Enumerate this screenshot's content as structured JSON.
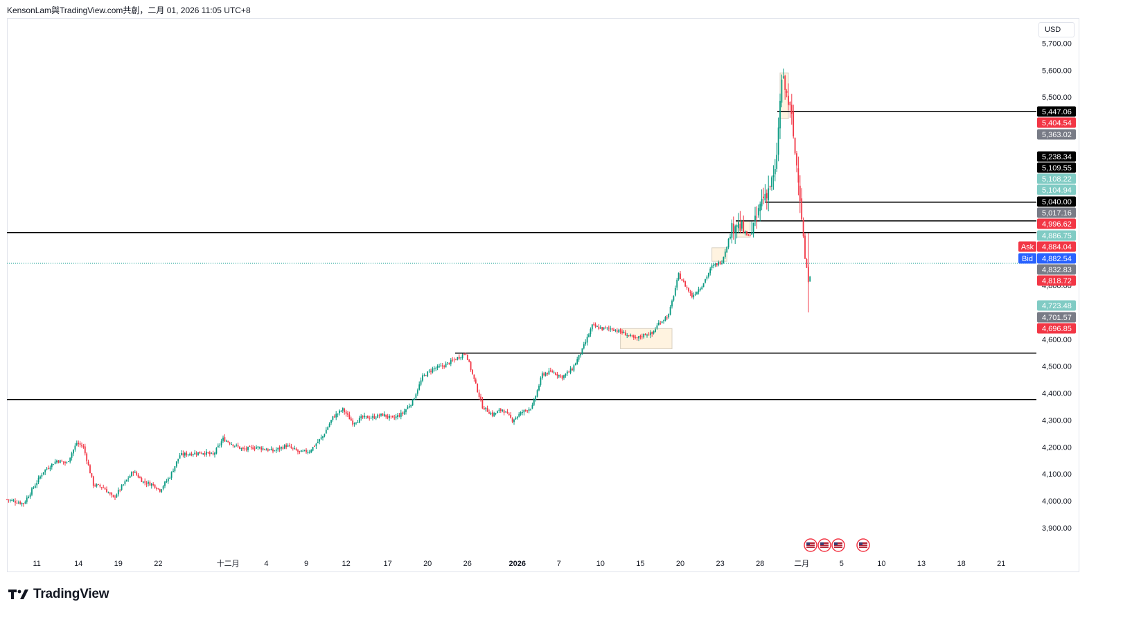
{
  "caption": "KensonLam與TradingView.com共創，二月 01, 2026 11:05 UTC+8",
  "currency": "USD",
  "brand": "TradingView",
  "chart_data": {
    "type": "candlestick",
    "title": "",
    "xlabel": "",
    "ylabel": "",
    "ylim": [
      3850,
      5770
    ],
    "y_ticks": [
      "5,700.00",
      "5,600.00",
      "5,500.00",
      "5,200.00",
      "4,800.00",
      "4,600.00",
      "4,500.00",
      "4,400.00",
      "4,300.00",
      "4,200.00",
      "4,100.00",
      "4,000.00",
      "3,900.00"
    ],
    "x_ticks": [
      "11",
      "14",
      "19",
      "22",
      "十二月",
      "4",
      "9",
      "12",
      "17",
      "20",
      "26",
      "2026",
      "7",
      "10",
      "15",
      "20",
      "23",
      "28",
      "二月",
      "5",
      "10",
      "13",
      "18",
      "21"
    ],
    "key_levels": [
      {
        "value": 5447.06,
        "label": "5,447.06"
      },
      {
        "value": 5109.55,
        "label": "5,109.55"
      },
      {
        "value": 5040.0,
        "label": "5,040.00"
      },
      {
        "value": 4996.62,
        "label": ""
      },
      {
        "value": 4548.74,
        "label": "4,548.74"
      },
      {
        "value": 4376.28,
        "label": "4,376.28"
      }
    ],
    "price_labels": [
      {
        "label": "5,447.06",
        "color": "#000000"
      },
      {
        "label": "5,404.54",
        "color": "#f23645"
      },
      {
        "label": "5,363.02",
        "color": "#787b86"
      },
      {
        "label": "5,238.34",
        "color": "#000000"
      },
      {
        "label": "5,109.55",
        "color": "#000000"
      },
      {
        "label": "5,108.22",
        "color": "#80cbc4"
      },
      {
        "label": "5,104.94",
        "color": "#80cbc4"
      },
      {
        "label": "5,040.00",
        "color": "#000000"
      },
      {
        "label": "5,017.16",
        "color": "#787b86"
      },
      {
        "label": "4,996.62",
        "color": "#f23645"
      },
      {
        "label": "4,886.75",
        "color": "#80cbc4"
      },
      {
        "label": "4,884.04",
        "color": "#f23645",
        "tag": "Ask"
      },
      {
        "label": "4,882.54",
        "color": "#2962ff",
        "tag": "Bid"
      },
      {
        "label": "4,832.83",
        "color": "#787b86"
      },
      {
        "label": "4,818.72",
        "color": "#f23645"
      },
      {
        "label": "4,723.48",
        "color": "#80cbc4"
      },
      {
        "label": "4,701.57",
        "color": "#787b86"
      },
      {
        "label": "4,696.85",
        "color": "#f23645"
      }
    ],
    "close_path": [
      [
        0,
        4005
      ],
      [
        10,
        3990
      ],
      [
        22,
        4110
      ],
      [
        30,
        4150
      ],
      [
        36,
        4140
      ],
      [
        42,
        4215
      ],
      [
        46,
        4200
      ],
      [
        52,
        4060
      ],
      [
        58,
        4050
      ],
      [
        64,
        4010
      ],
      [
        70,
        4060
      ],
      [
        76,
        4110
      ],
      [
        82,
        4070
      ],
      [
        88,
        4060
      ],
      [
        92,
        4040
      ],
      [
        98,
        4090
      ],
      [
        104,
        4170
      ],
      [
        110,
        4175
      ],
      [
        118,
        4180
      ],
      [
        124,
        4170
      ],
      [
        130,
        4230
      ],
      [
        136,
        4210
      ],
      [
        142,
        4190
      ],
      [
        150,
        4200
      ],
      [
        160,
        4185
      ],
      [
        168,
        4205
      ],
      [
        176,
        4180
      ],
      [
        182,
        4185
      ],
      [
        190,
        4240
      ],
      [
        196,
        4310
      ],
      [
        202,
        4340
      ],
      [
        208,
        4290
      ],
      [
        214,
        4310
      ],
      [
        220,
        4310
      ],
      [
        226,
        4320
      ],
      [
        232,
        4305
      ],
      [
        238,
        4325
      ],
      [
        244,
        4370
      ],
      [
        250,
        4460
      ],
      [
        256,
        4490
      ],
      [
        262,
        4500
      ],
      [
        268,
        4520
      ],
      [
        276,
        4550
      ],
      [
        282,
        4430
      ],
      [
        286,
        4350
      ],
      [
        292,
        4320
      ],
      [
        298,
        4340
      ],
      [
        304,
        4300
      ],
      [
        310,
        4330
      ],
      [
        316,
        4350
      ],
      [
        322,
        4470
      ],
      [
        328,
        4480
      ],
      [
        334,
        4460
      ],
      [
        340,
        4490
      ],
      [
        346,
        4560
      ],
      [
        352,
        4650
      ],
      [
        358,
        4640
      ],
      [
        364,
        4640
      ],
      [
        372,
        4620
      ],
      [
        378,
        4600
      ],
      [
        384,
        4620
      ],
      [
        388,
        4620
      ],
      [
        392,
        4660
      ],
      [
        398,
        4690
      ],
      [
        404,
        4840
      ],
      [
        408,
        4800
      ],
      [
        412,
        4760
      ],
      [
        418,
        4800
      ],
      [
        424,
        4870
      ],
      [
        430,
        4890
      ],
      [
        434,
        4970
      ],
      [
        438,
        5040
      ],
      [
        442,
        5010
      ],
      [
        446,
        4980
      ],
      [
        450,
        5030
      ],
      [
        454,
        5120
      ],
      [
        458,
        5160
      ],
      [
        462,
        5210
      ],
      [
        464,
        5380
      ],
      [
        466,
        5570
      ],
      [
        468,
        5530
      ],
      [
        470,
        5480
      ],
      [
        472,
        5420
      ],
      [
        474,
        5290
      ],
      [
        476,
        5210
      ],
      [
        478,
        5060
      ],
      [
        480,
        4900
      ],
      [
        482,
        4820
      ],
      [
        483,
        4840
      ]
    ],
    "range_boxes": [
      {
        "x": [
          369,
          400
        ],
        "y": [
          4565,
          4640
        ]
      },
      {
        "x": [
          424,
          433
        ],
        "y": [
          4890,
          4940
        ]
      },
      {
        "x": [
          439,
          447
        ],
        "y": [
          4980,
          5040
        ]
      },
      {
        "x": [
          465,
          470
        ],
        "y": [
          5420,
          5590
        ]
      }
    ],
    "event_markers": [
      "us-flag",
      "us-flag",
      "us-flag",
      "us-flag"
    ]
  }
}
